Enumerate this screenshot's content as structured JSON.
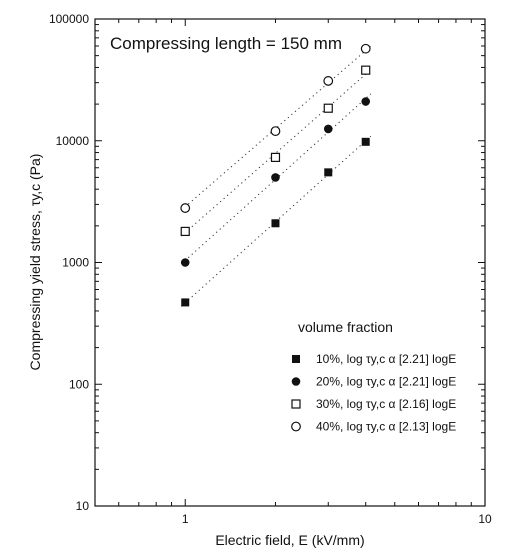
{
  "chart_data": {
    "type": "scatter",
    "title": "",
    "xlabel": "Electric field, E (kV/mm)",
    "ylabel": "Compressing yield stress, τy,c (Pa)",
    "x_scale": "log",
    "y_scale": "log",
    "xlim": [
      0.5,
      10
    ],
    "ylim": [
      10,
      100000
    ],
    "x_tick_labels": [
      {
        "value": 1,
        "label": "1"
      },
      {
        "value": 10,
        "label": "10"
      }
    ],
    "y_tick_labels": [
      {
        "value": 10,
        "label": "10"
      },
      {
        "value": 100,
        "label": "100"
      },
      {
        "value": 1000,
        "label": "1000"
      },
      {
        "value": 10000,
        "label": "10000"
      },
      {
        "value": 100000,
        "label": "100000"
      }
    ],
    "annotation": "Compressing length = 150 mm",
    "legend_title": "volume fraction",
    "legend_position": "lower-right",
    "grid": false,
    "series": [
      {
        "name": "10%, log τy,c α [2.21] logE",
        "marker": "filled-square",
        "x": [
          1,
          2,
          3,
          4
        ],
        "y": [
          470,
          2100,
          5500,
          9800
        ],
        "fit": {
          "slope": 2.21,
          "x_range": [
            1,
            4
          ]
        }
      },
      {
        "name": "20%, log τy,c α [2.21] logE",
        "marker": "filled-circle",
        "x": [
          1,
          2,
          3,
          4
        ],
        "y": [
          1000,
          5000,
          12500,
          21000
        ],
        "fit": {
          "slope": 2.21,
          "x_range": [
            1,
            4
          ]
        }
      },
      {
        "name": "30%, log τy,c α [2.16] logE",
        "marker": "open-square",
        "x": [
          1,
          2,
          3,
          4
        ],
        "y": [
          1800,
          7300,
          18500,
          38000
        ],
        "fit": {
          "slope": 2.16,
          "x_range": [
            1,
            4
          ]
        }
      },
      {
        "name": "40%, log τy,c α [2.13] logE",
        "marker": "open-circle",
        "x": [
          1,
          2,
          3,
          4
        ],
        "y": [
          2800,
          12000,
          31000,
          57000
        ],
        "fit": {
          "slope": 2.13,
          "x_range": [
            1,
            4
          ]
        }
      }
    ]
  }
}
